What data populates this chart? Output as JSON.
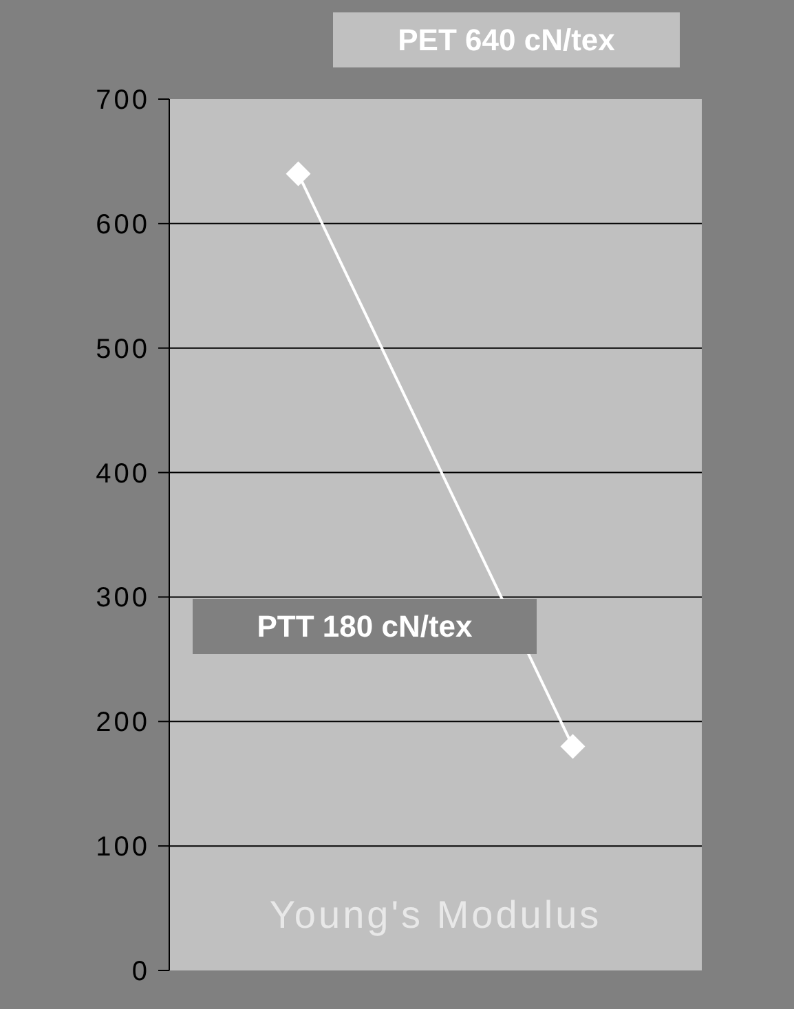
{
  "chart_data": {
    "type": "line",
    "categories": [
      null,
      null
    ],
    "series": [
      {
        "color": "#ffffff",
        "values": [
          640,
          180
        ]
      }
    ],
    "xlabel": "Young's Modulus",
    "annotations": [
      "PET 640 cN/tex",
      "PTT 180 cN/tex"
    ],
    "ylim": [
      0,
      700
    ],
    "yticks": [
      0,
      100,
      200,
      300,
      400,
      500,
      600,
      700
    ],
    "grid": "y",
    "marker": "diamond",
    "line_style": "solid"
  }
}
